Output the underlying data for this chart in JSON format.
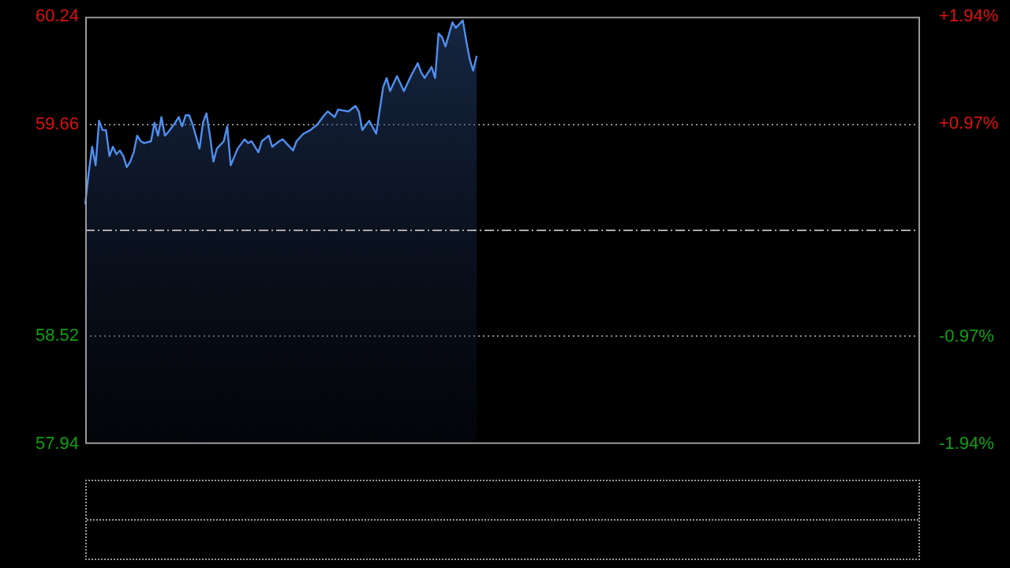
{
  "chart_data": {
    "type": "area",
    "categories": [
      null,
      null,
      null,
      null,
      null,
      null,
      null,
      null,
      null,
      null,
      null,
      null,
      null,
      null,
      null,
      null,
      null,
      null,
      null,
      null,
      null,
      null,
      null,
      null,
      null,
      null,
      null,
      null,
      null,
      null,
      null,
      null,
      null,
      null,
      null,
      null,
      null,
      null,
      null,
      null,
      null,
      null,
      null,
      null,
      null,
      null,
      null,
      null,
      null,
      null,
      null,
      null,
      null,
      null,
      null,
      null,
      null,
      null,
      null,
      null,
      null,
      null,
      null,
      null,
      null,
      null,
      null,
      null,
      null,
      null,
      null,
      null,
      null,
      null,
      null,
      null,
      null,
      null,
      null,
      null,
      null,
      null,
      null,
      null,
      null,
      null,
      null,
      null,
      null,
      null,
      null,
      null,
      null,
      null,
      null,
      null,
      null,
      null,
      null,
      null,
      null,
      null,
      null,
      null,
      null,
      null,
      null,
      null,
      null,
      null,
      null,
      null,
      null,
      null,
      null,
      null,
      null,
      null,
      null,
      null,
      null,
      null,
      null,
      null,
      null,
      null,
      null,
      null,
      null,
      null,
      null,
      null,
      null,
      null,
      null,
      null,
      null,
      null,
      null,
      null,
      null,
      null,
      null,
      null,
      null,
      null,
      null,
      null,
      null,
      null,
      null,
      null,
      null,
      null,
      null,
      null,
      null,
      null,
      null,
      null,
      null,
      null,
      null,
      null,
      null,
      null,
      null,
      null,
      null,
      null,
      null,
      null,
      null,
      null,
      null,
      null,
      null,
      null,
      null,
      null,
      null,
      null,
      null,
      null,
      null,
      null,
      null,
      null,
      null,
      null,
      null,
      null,
      null,
      null,
      null,
      null,
      null,
      null,
      null,
      null,
      null,
      null,
      null,
      null,
      null,
      null,
      null,
      null,
      null,
      null,
      null,
      null,
      null,
      null,
      null,
      null,
      null,
      null,
      null,
      null,
      null,
      null,
      null,
      null,
      null,
      null,
      null,
      null,
      null,
      null,
      null,
      null,
      null,
      null,
      null,
      null,
      null,
      null,
      null,
      null,
      null,
      null
    ],
    "series": [
      {
        "color": "#4f8fef",
        "values": [
          59.23,
          59.4,
          59.54,
          59.44,
          59.68,
          59.63,
          59.63,
          59.49,
          59.54,
          59.5,
          59.52,
          59.49,
          59.43,
          59.46,
          59.51,
          59.6,
          59.57,
          59.56,
          null,
          59.57,
          59.67,
          59.6,
          59.7,
          59.6,
          59.62,
          null,
          59.67,
          59.7,
          59.65,
          59.71,
          59.71,
          59.66,
          null,
          59.53,
          59.67,
          59.72,
          59.6,
          59.46,
          59.53,
          null,
          59.57,
          59.65,
          59.44,
          null,
          59.53,
          null,
          59.58,
          59.56,
          59.57,
          null,
          59.51,
          59.57,
          null,
          59.6,
          59.54,
          null,
          59.57,
          59.58,
          null,
          null,
          59.52,
          59.57,
          null,
          59.61,
          null,
          59.63,
          null,
          59.66,
          null,
          59.71,
          59.73,
          null,
          59.7,
          59.74,
          null,
          null,
          59.73,
          null,
          59.76,
          59.73,
          59.63,
          null,
          59.68,
          null,
          59.61,
          null,
          59.86,
          59.91,
          59.84,
          null,
          59.92,
          59.88,
          59.84,
          null,
          59.92,
          null,
          59.99,
          59.94,
          59.91,
          null,
          59.97,
          59.91,
          60.15,
          60.13,
          60.08,
          null,
          60.21,
          60.18,
          null,
          60.22,
          60.11,
          60.01,
          59.95,
          60.03,
          null,
          null,
          null,
          null,
          null,
          null,
          null,
          null,
          null,
          null,
          null,
          null,
          null,
          null,
          null,
          null,
          null,
          null,
          null,
          null,
          null,
          null,
          null,
          null,
          null,
          null,
          null,
          null,
          null,
          null,
          null,
          null,
          null,
          null,
          null,
          null,
          null,
          null,
          null,
          null,
          null,
          null,
          null,
          null,
          null,
          null,
          null,
          null,
          null,
          null,
          null,
          null,
          null,
          null,
          null,
          null,
          null,
          null,
          null,
          null,
          null,
          null,
          null,
          null,
          null,
          null,
          null,
          null,
          null,
          null,
          null,
          null,
          null,
          null,
          null,
          null,
          null,
          null,
          null,
          null,
          null,
          null,
          null,
          null,
          null,
          null,
          null,
          null,
          null,
          null,
          null,
          null,
          null,
          null,
          null,
          null,
          null,
          null,
          null,
          null,
          null,
          null,
          null,
          null,
          null,
          null,
          null,
          null,
          null,
          null,
          null,
          null,
          null,
          null,
          null,
          null,
          null,
          null,
          null,
          null,
          null,
          null,
          null,
          null,
          null,
          null,
          null,
          null
        ]
      }
    ],
    "ylim": [
      57.94,
      60.24
    ],
    "yticks": [
      57.94,
      58.52,
      59.66,
      60.24
    ],
    "y2lim": [
      -1.94,
      1.94
    ],
    "y2ticks": [
      {
        "value": -1.94,
        "label": "-1.94%"
      },
      {
        "value": -0.97,
        "label": "-0.97%"
      },
      {
        "value": 0.97,
        "label": "+0.97%"
      },
      {
        "value": 1.94,
        "label": "+1.94%"
      }
    ],
    "ref_lines": [
      {
        "axis": "y",
        "value": 59.09,
        "color": "#aaaaaa",
        "line_style": "dashed"
      }
    ],
    "grid": "y",
    "legend": false,
    "marker": "none",
    "line_style": "solid"
  }
}
